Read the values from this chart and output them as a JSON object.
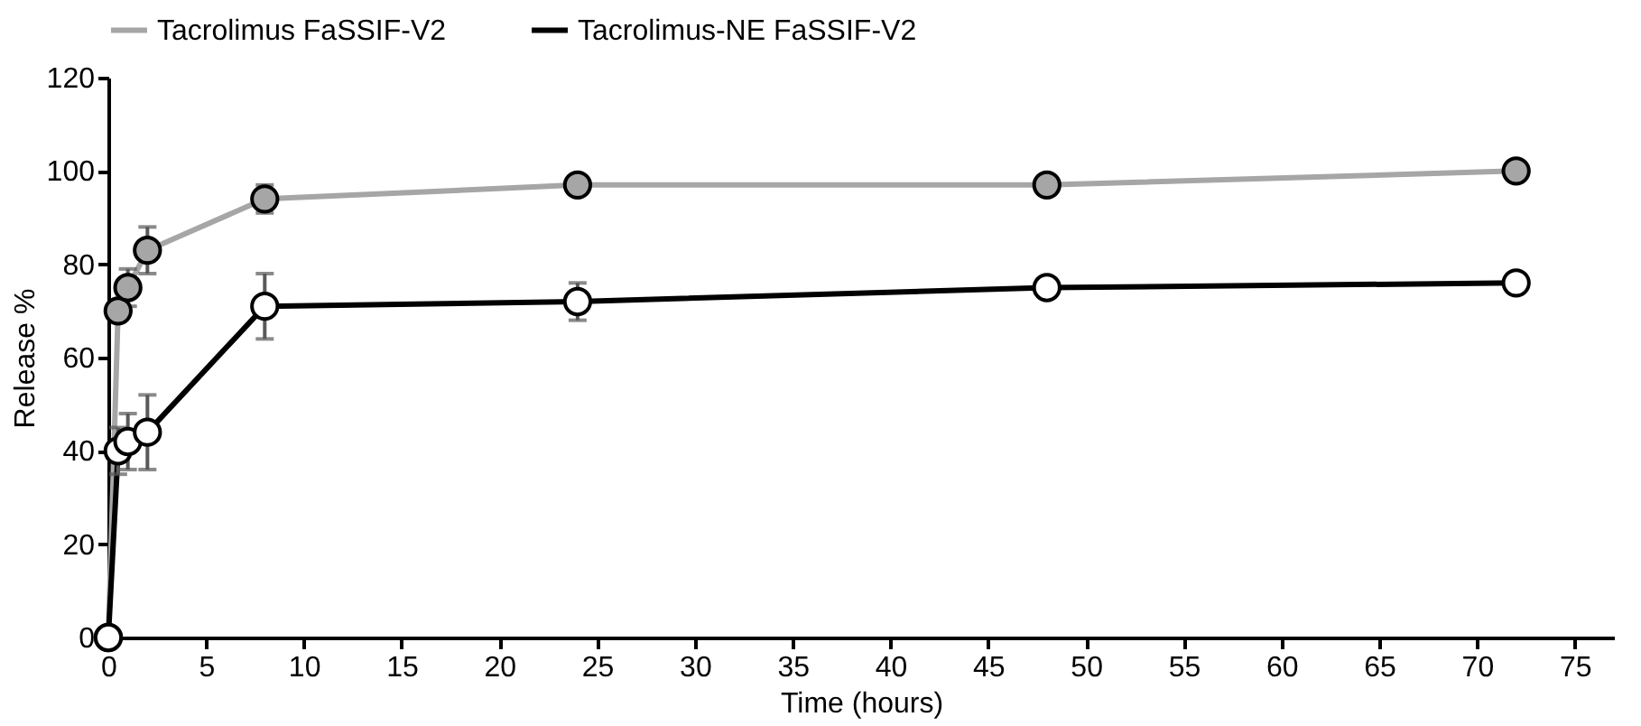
{
  "chart_data": {
    "type": "line",
    "xlabel": "Time (hours)",
    "ylabel": "Release %",
    "x": [
      0,
      0.5,
      1,
      2,
      8,
      24,
      48,
      72
    ],
    "series": [
      {
        "name": "Tacrolimus FaSSIF-V2",
        "color": "#a6a6a6",
        "values": [
          0,
          70,
          75,
          83,
          94,
          97,
          97,
          100
        ],
        "errors": [
          null,
          2,
          4,
          5,
          3,
          null,
          null,
          null
        ]
      },
      {
        "name": "Tacrolimus-NE FaSSIF-V2",
        "color": "#000000",
        "values": [
          0,
          40,
          42,
          44,
          71,
          72,
          75,
          76
        ],
        "errors": [
          null,
          5,
          6,
          8,
          7,
          4,
          null,
          null
        ]
      }
    ],
    "xlim": [
      0,
      77
    ],
    "xticks": [
      0,
      5,
      10,
      15,
      20,
      25,
      30,
      35,
      40,
      45,
      50,
      55,
      60,
      65,
      70,
      75
    ],
    "ylim": [
      0,
      120
    ],
    "yticks": [
      0,
      20,
      40,
      60,
      80,
      100,
      120
    ],
    "grid": false,
    "legend": "top",
    "marker": "circle",
    "line_style": "solid"
  }
}
